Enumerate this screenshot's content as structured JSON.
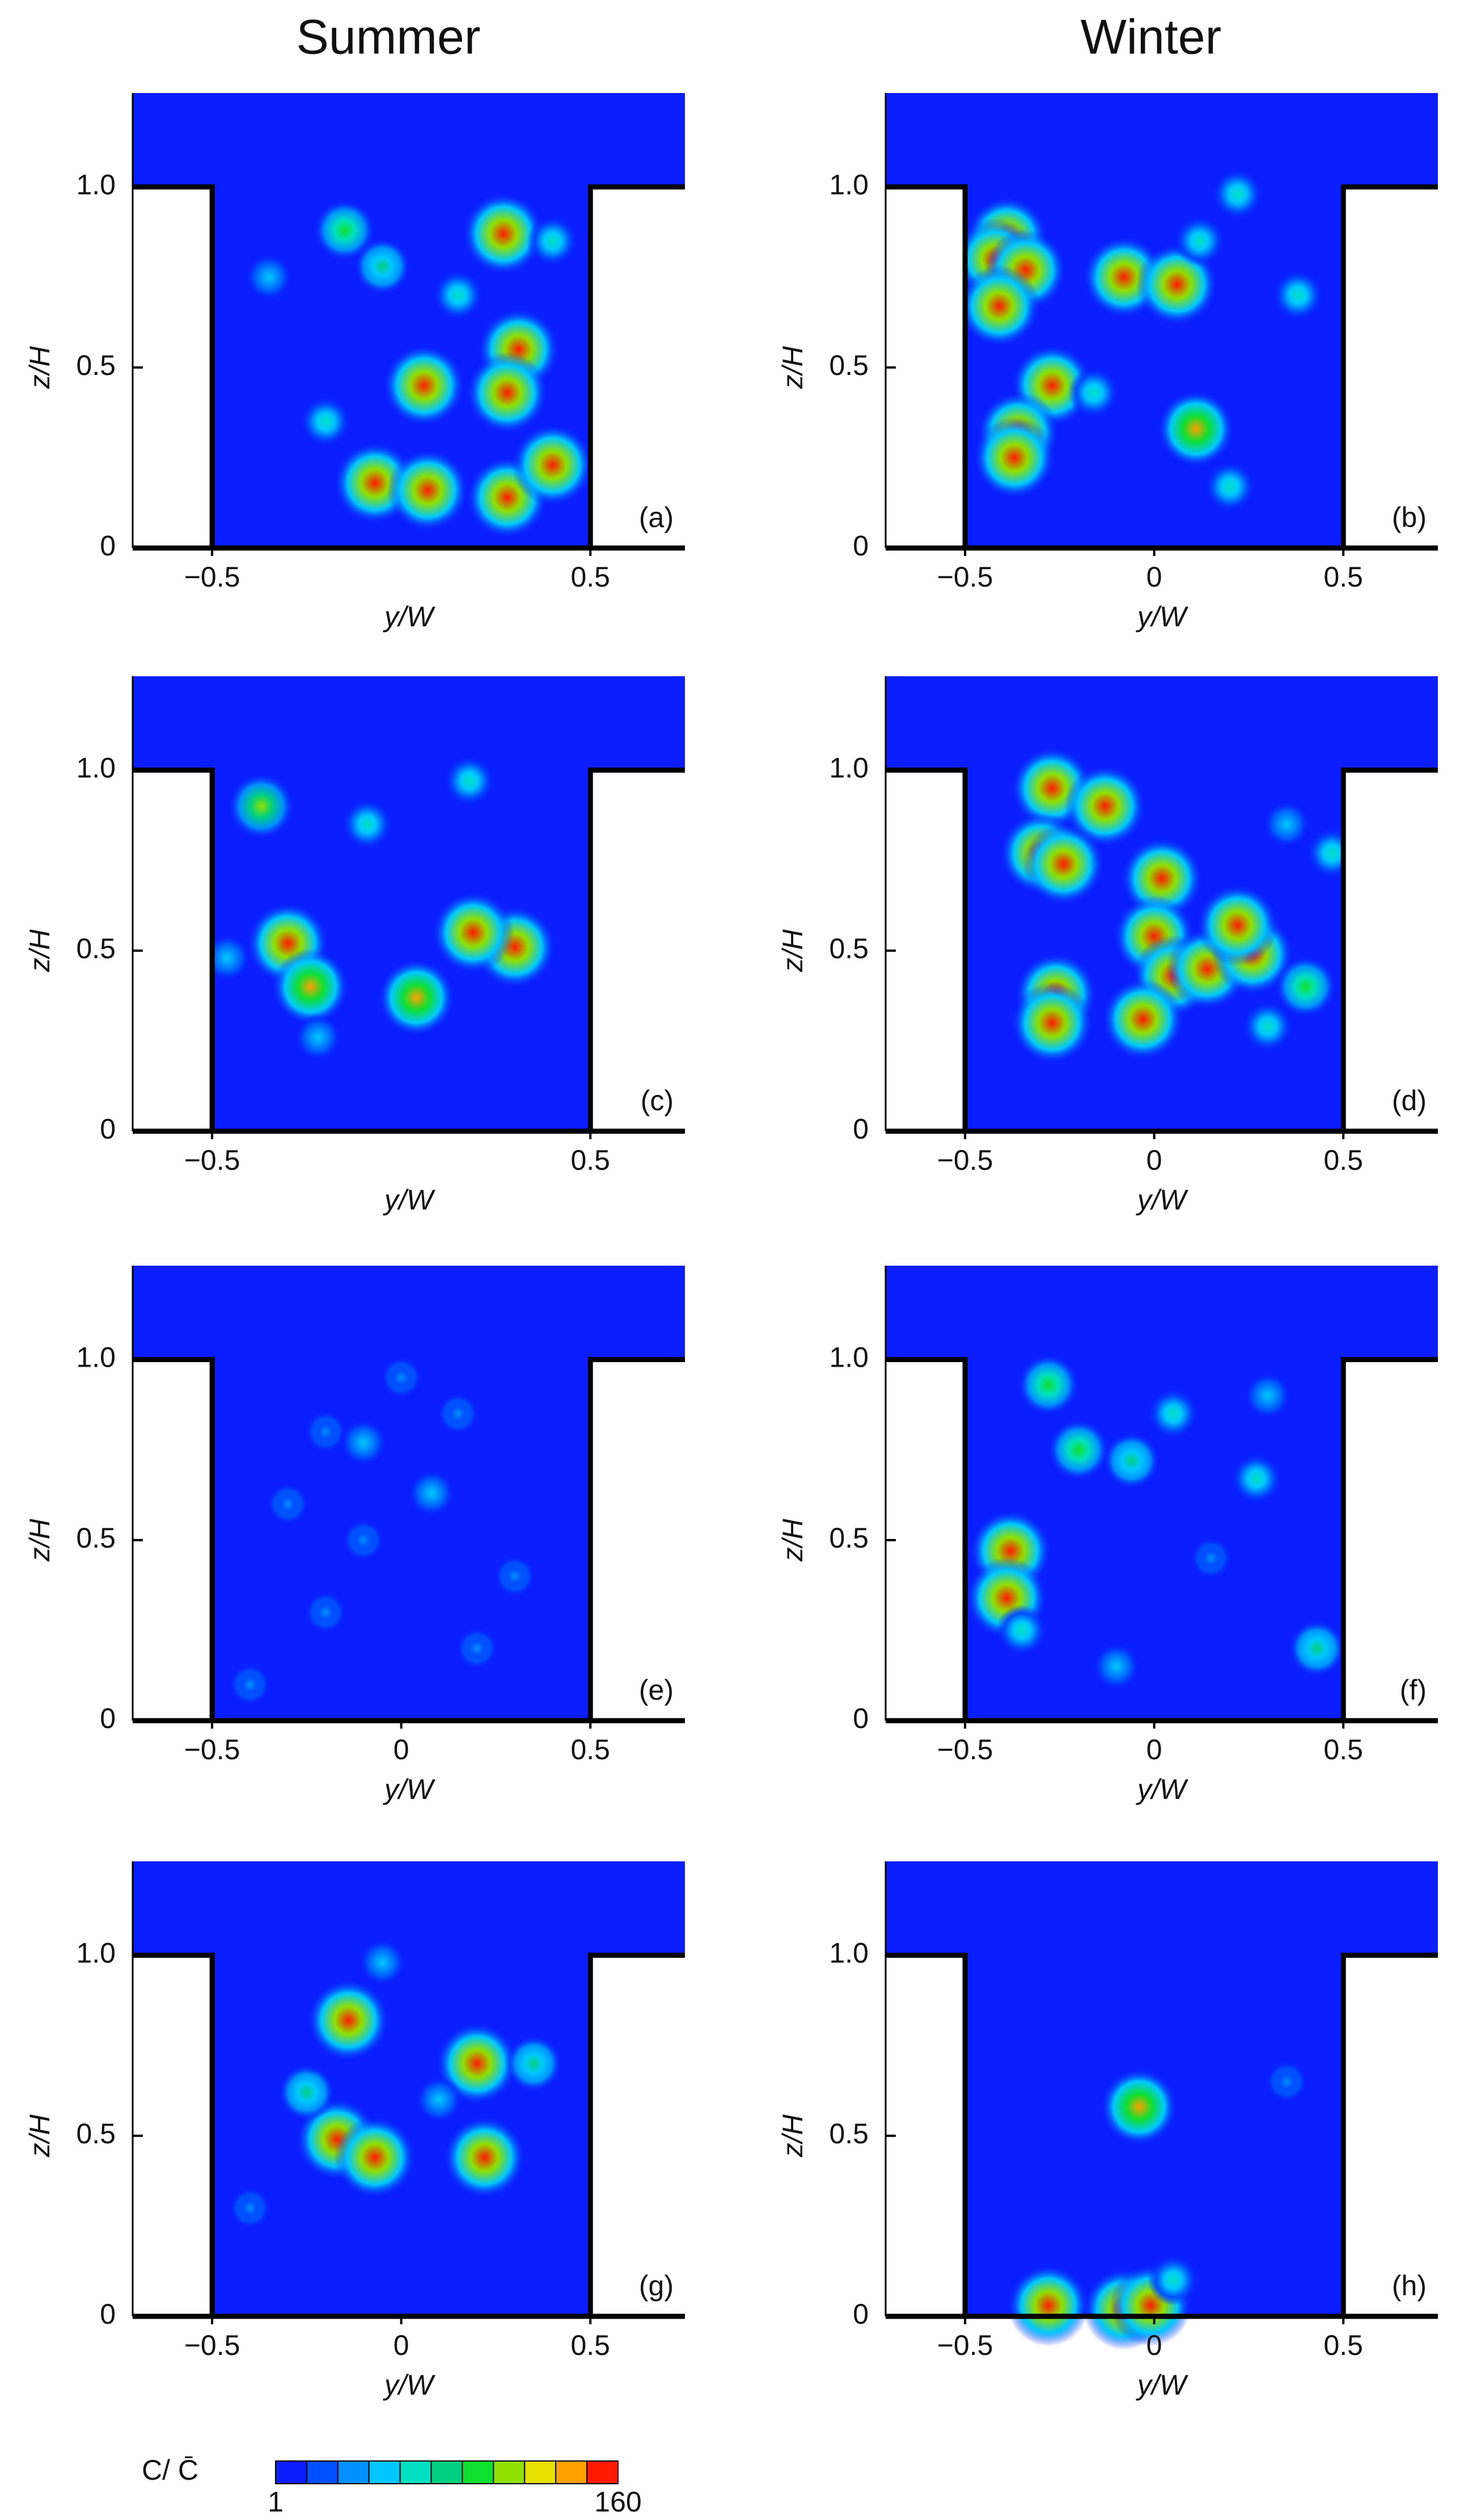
{
  "titles": [
    "Summer",
    "Winter"
  ],
  "chart_data": [
    {
      "type": "contour",
      "label": "(a)",
      "xlabel": "y/W",
      "ylabel": "z/H",
      "xlim": [
        -0.71,
        0.75
      ],
      "ylim": [
        0,
        1.26
      ],
      "xticks": [
        {
          "value": -0.5,
          "label": "−0.5"
        },
        0.5
      ],
      "yticks": [
        0,
        0.5,
        {
          "value": 1,
          "label": "1.0"
        }
      ],
      "hotspots": {
        "x": [
          0.27,
          -0.15,
          -0.05,
          0.31,
          0.06,
          0.28,
          -0.07,
          0.07,
          0.28,
          0.4,
          -0.2,
          0.15,
          -0.35,
          0.4
        ],
        "z": [
          0.87,
          0.88,
          0.78,
          0.55,
          0.45,
          0.43,
          0.18,
          0.16,
          0.14,
          0.23,
          0.35,
          0.7,
          0.75,
          0.85
        ],
        "level": [
          160,
          100,
          80,
          160,
          160,
          160,
          160,
          160,
          160,
          160,
          70,
          70,
          50,
          60
        ]
      }
    },
    {
      "type": "contour",
      "label": "(b)",
      "xlabel": "y/W",
      "ylabel": "z/H",
      "xlim": [
        -0.71,
        0.75
      ],
      "ylim": [
        0,
        1.26
      ],
      "xticks": [
        {
          "value": -0.5,
          "label": "−0.5"
        },
        0,
        0.5
      ],
      "yticks": [
        0,
        0.5,
        {
          "value": 1,
          "label": "1.0"
        }
      ],
      "hotspots": {
        "x": [
          -0.39,
          -0.42,
          -0.34,
          -0.41,
          -0.08,
          0.06,
          -0.27,
          -0.36,
          -0.37,
          0.11,
          0.22,
          0.12,
          0.38,
          0.2,
          -0.16
        ],
        "z": [
          0.86,
          0.8,
          0.77,
          0.67,
          0.75,
          0.73,
          0.45,
          0.32,
          0.25,
          0.33,
          0.98,
          0.85,
          0.7,
          0.17,
          0.43
        ],
        "level": [
          160,
          160,
          160,
          160,
          160,
          160,
          160,
          160,
          160,
          140,
          60,
          60,
          60,
          60,
          60
        ]
      }
    },
    {
      "type": "contour",
      "label": "(c)",
      "xlabel": "y/W",
      "ylabel": "z/H",
      "xlim": [
        -0.71,
        0.75
      ],
      "ylim": [
        0,
        1.26
      ],
      "xticks": [
        {
          "value": -0.5,
          "label": "−0.5"
        },
        0.5
      ],
      "yticks": [
        0,
        0.5,
        {
          "value": 1,
          "label": "1.0"
        }
      ],
      "hotspots": {
        "x": [
          -0.37,
          -0.3,
          -0.24,
          0.3,
          0.19,
          0.04,
          -0.09,
          0.18,
          -0.46,
          -0.22
        ],
        "z": [
          0.9,
          0.52,
          0.4,
          0.51,
          0.55,
          0.37,
          0.85,
          0.97,
          0.48,
          0.26
        ],
        "level": [
          110,
          160,
          140,
          160,
          160,
          140,
          60,
          60,
          50,
          50
        ]
      }
    },
    {
      "type": "contour",
      "label": "(d)",
      "xlabel": "y/W",
      "ylabel": "z/H",
      "xlim": [
        -0.71,
        0.75
      ],
      "ylim": [
        0,
        1.26
      ],
      "xticks": [
        {
          "value": -0.5,
          "label": "−0.5"
        },
        0,
        0.5
      ],
      "yticks": [
        0,
        0.5,
        {
          "value": 1,
          "label": "1.0"
        }
      ],
      "hotspots": {
        "x": [
          -0.27,
          -0.13,
          0.02,
          -0.3,
          -0.24,
          0,
          0.05,
          0.14,
          0.26,
          0.22,
          -0.26,
          -0.27,
          -0.03,
          0.4,
          0.3,
          0.47,
          0.35
        ],
        "z": [
          0.95,
          0.9,
          0.7,
          0.77,
          0.74,
          0.54,
          0.43,
          0.45,
          0.49,
          0.57,
          0.38,
          0.3,
          0.31,
          0.4,
          0.29,
          0.77,
          0.85
        ],
        "level": [
          160,
          160,
          160,
          160,
          160,
          160,
          160,
          160,
          160,
          160,
          160,
          160,
          160,
          100,
          70,
          60,
          50
        ]
      }
    },
    {
      "type": "contour",
      "label": "(e)",
      "xlabel": "y/W",
      "ylabel": "z/H",
      "xlim": [
        -0.71,
        0.75
      ],
      "ylim": [
        0,
        1.26
      ],
      "xticks": [
        {
          "value": -0.5,
          "label": "−0.5"
        },
        0,
        0.5
      ],
      "yticks": [
        0,
        0.5,
        {
          "value": 1,
          "label": "1.0"
        }
      ],
      "hotspots": {
        "x": [
          0,
          -0.1,
          0.08,
          -0.2,
          0.15,
          -0.3,
          0.3,
          -0.1,
          0.2,
          -0.4,
          -0.2
        ],
        "z": [
          0.95,
          0.77,
          0.63,
          0.8,
          0.85,
          0.6,
          0.4,
          0.5,
          0.2,
          0.1,
          0.3
        ],
        "level": [
          40,
          45,
          45,
          35,
          35,
          30,
          30,
          30,
          25,
          25,
          25
        ]
      }
    },
    {
      "type": "contour",
      "label": "(f)",
      "xlabel": "y/W",
      "ylabel": "z/H",
      "xlim": [
        -0.71,
        0.75
      ],
      "ylim": [
        0,
        1.26
      ],
      "xticks": [
        {
          "value": -0.5,
          "label": "−0.5"
        },
        0,
        0.5
      ],
      "yticks": [
        0,
        0.5,
        {
          "value": 1,
          "label": "1.0"
        }
      ],
      "hotspots": {
        "x": [
          -0.38,
          -0.39,
          -0.28,
          -0.2,
          -0.06,
          0.27,
          0.43,
          -0.35,
          0.05,
          0.3,
          -0.1,
          0.15
        ],
        "z": [
          0.47,
          0.34,
          0.93,
          0.75,
          0.72,
          0.67,
          0.2,
          0.25,
          0.85,
          0.9,
          0.15,
          0.45
        ],
        "level": [
          160,
          160,
          90,
          90,
          80,
          70,
          80,
          70,
          60,
          50,
          50,
          40
        ]
      }
    },
    {
      "type": "contour",
      "label": "(g)",
      "xlabel": "y/W",
      "ylabel": "z/H",
      "xlim": [
        -0.71,
        0.75
      ],
      "ylim": [
        0,
        1.26
      ],
      "xticks": [
        {
          "value": -0.5,
          "label": "−0.5"
        },
        0,
        0.5
      ],
      "yticks": [
        0,
        0.5,
        {
          "value": 1,
          "label": "1.0"
        }
      ],
      "hotspots": {
        "x": [
          -0.14,
          -0.17,
          -0.07,
          0.22,
          0.2,
          -0.25,
          0.35,
          -0.05,
          0.1,
          -0.4
        ],
        "z": [
          0.82,
          0.49,
          0.44,
          0.44,
          0.7,
          0.62,
          0.7,
          0.98,
          0.6,
          0.3
        ],
        "level": [
          160,
          160,
          160,
          160,
          160,
          80,
          80,
          50,
          45,
          35
        ]
      }
    },
    {
      "type": "contour",
      "label": "(h)",
      "xlabel": "y/W",
      "ylabel": "z/H",
      "xlim": [
        -0.71,
        0.75
      ],
      "ylim": [
        0,
        1.26
      ],
      "xticks": [
        {
          "value": -0.5,
          "label": "−0.5"
        },
        0,
        0.5
      ],
      "yticks": [
        0,
        0.5,
        {
          "value": 1,
          "label": "1.0"
        }
      ],
      "hotspots": {
        "x": [
          -0.04,
          -0.28,
          -0.08,
          -0.01,
          0.05,
          0.35
        ],
        "z": [
          0.58,
          0.03,
          0.02,
          0.03,
          0.1,
          0.65
        ],
        "level": [
          140,
          160,
          160,
          160,
          70,
          35
        ]
      }
    }
  ],
  "colorbar": {
    "label": "C/ C̄",
    "min": 1,
    "max": 160,
    "ticks": [
      1,
      160
    ],
    "colors": [
      "#0a1eff",
      "#0050ff",
      "#0090ff",
      "#00c8ff",
      "#00e0c0",
      "#00d080",
      "#10e030",
      "#90e000",
      "#e8e000",
      "#ffa000",
      "#ff1a00"
    ]
  }
}
